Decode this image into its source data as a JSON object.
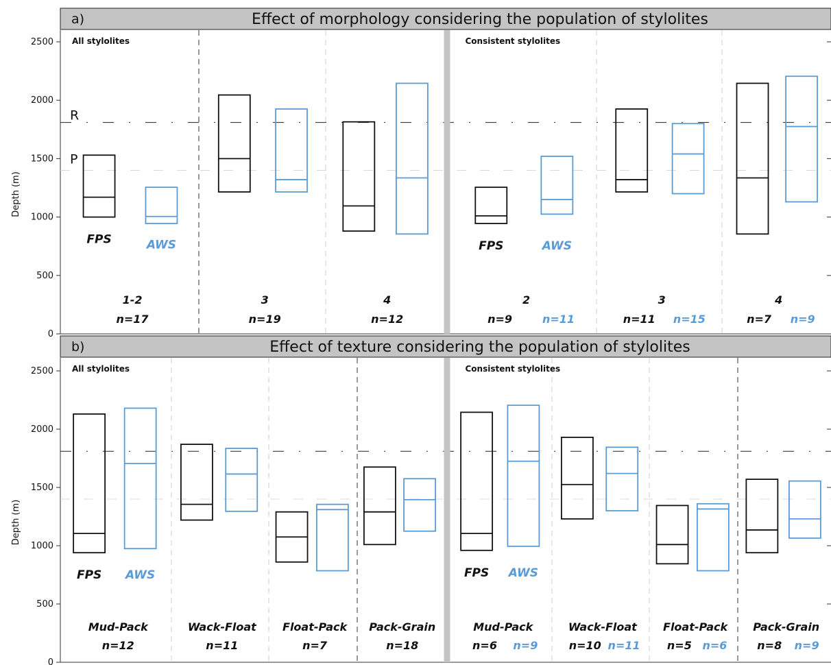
{
  "colors": {
    "fps": "#111111",
    "aws": "#5b9bd5",
    "title_bg": "#c4c4c4",
    "separator": "#c4c4c4"
  },
  "y_axis_label": "Depth (m)",
  "reference_lines": [
    {
      "label": "R",
      "depth": 1810
    },
    {
      "label": "P",
      "depth": 1400
    }
  ],
  "legend": {
    "fps": "FPS",
    "aws": "AWS"
  },
  "chart_data": [
    {
      "type": "box",
      "panel": "a)",
      "title": "Effect of morphology considering the population of stylolites",
      "ylabel": "Depth (m)",
      "ylim": [
        0,
        2600
      ],
      "yticks": [
        0,
        500,
        1000,
        1500,
        2000,
        2500
      ],
      "halves": [
        {
          "label": "All stylolites",
          "groups": [
            {
              "name": "1-2",
              "n_fps": "n=17",
              "n_aws": "",
              "fps": [
                1000,
                1170,
                1530
              ],
              "aws": [
                945,
                1005,
                1255
              ]
            },
            {
              "name": "3",
              "n_fps": "n=19",
              "n_aws": "",
              "fps": [
                1215,
                1500,
                2045
              ],
              "aws": [
                1215,
                1320,
                1925
              ]
            },
            {
              "name": "4",
              "n_fps": "n=12",
              "n_aws": "",
              "fps": [
                880,
                1095,
                1815
              ],
              "aws": [
                855,
                1335,
                2145
              ]
            }
          ]
        },
        {
          "label": "Consistent stylolites",
          "groups": [
            {
              "name": "2",
              "n_fps": "n=9",
              "n_aws": "n=11",
              "fps": [
                945,
                1010,
                1255
              ],
              "aws": [
                1025,
                1150,
                1520
              ]
            },
            {
              "name": "3",
              "n_fps": "n=11",
              "n_aws": "n=15",
              "fps": [
                1215,
                1320,
                1925
              ],
              "aws": [
                1200,
                1540,
                1800
              ]
            },
            {
              "name": "4",
              "n_fps": "n=7",
              "n_aws": "n=9",
              "fps": [
                855,
                1335,
                2145
              ],
              "aws": [
                1130,
                1775,
                2205
              ]
            }
          ]
        }
      ]
    },
    {
      "type": "box",
      "panel": "b)",
      "title": "Effect of texture considering the population of stylolites",
      "ylabel": "Depth (m)",
      "ylim": [
        0,
        2600
      ],
      "yticks": [
        0,
        500,
        1000,
        1500,
        2000,
        2500
      ],
      "halves": [
        {
          "label": "All stylolites",
          "groups": [
            {
              "name": "Mud-Pack",
              "n_fps": "n=12",
              "n_aws": "",
              "fps": [
                940,
                1105,
                2130
              ],
              "aws": [
                975,
                1705,
                2180
              ]
            },
            {
              "name": "Wack-Float",
              "n_fps": "n=11",
              "n_aws": "",
              "fps": [
                1220,
                1355,
                1870
              ],
              "aws": [
                1295,
                1615,
                1835
              ]
            },
            {
              "name": "Float-Pack",
              "n_fps": "n=7",
              "n_aws": "",
              "fps": [
                860,
                1075,
                1290
              ],
              "aws": [
                785,
                1310,
                1355
              ]
            },
            {
              "name": "Pack-Grain",
              "n_fps": "n=18",
              "n_aws": "",
              "fps": [
                1010,
                1290,
                1675
              ],
              "aws": [
                1125,
                1395,
                1575
              ]
            }
          ]
        },
        {
          "label": "Consistent stylolites",
          "groups": [
            {
              "name": "Mud-Pack",
              "n_fps": "n=6",
              "n_aws": "n=9",
              "fps": [
                960,
                1105,
                2145
              ],
              "aws": [
                995,
                1725,
                2205
              ]
            },
            {
              "name": "Wack-Float",
              "n_fps": "n=10",
              "n_aws": "n=11",
              "fps": [
                1230,
                1525,
                1930
              ],
              "aws": [
                1300,
                1620,
                1845
              ]
            },
            {
              "name": "Float-Pack",
              "n_fps": "n=5",
              "n_aws": "n=6",
              "fps": [
                845,
                1010,
                1345
              ],
              "aws": [
                785,
                1315,
                1360
              ]
            },
            {
              "name": "Pack-Grain",
              "n_fps": "n=8",
              "n_aws": "n=9",
              "fps": [
                940,
                1135,
                1570
              ],
              "aws": [
                1065,
                1230,
                1555
              ]
            }
          ]
        }
      ]
    }
  ]
}
